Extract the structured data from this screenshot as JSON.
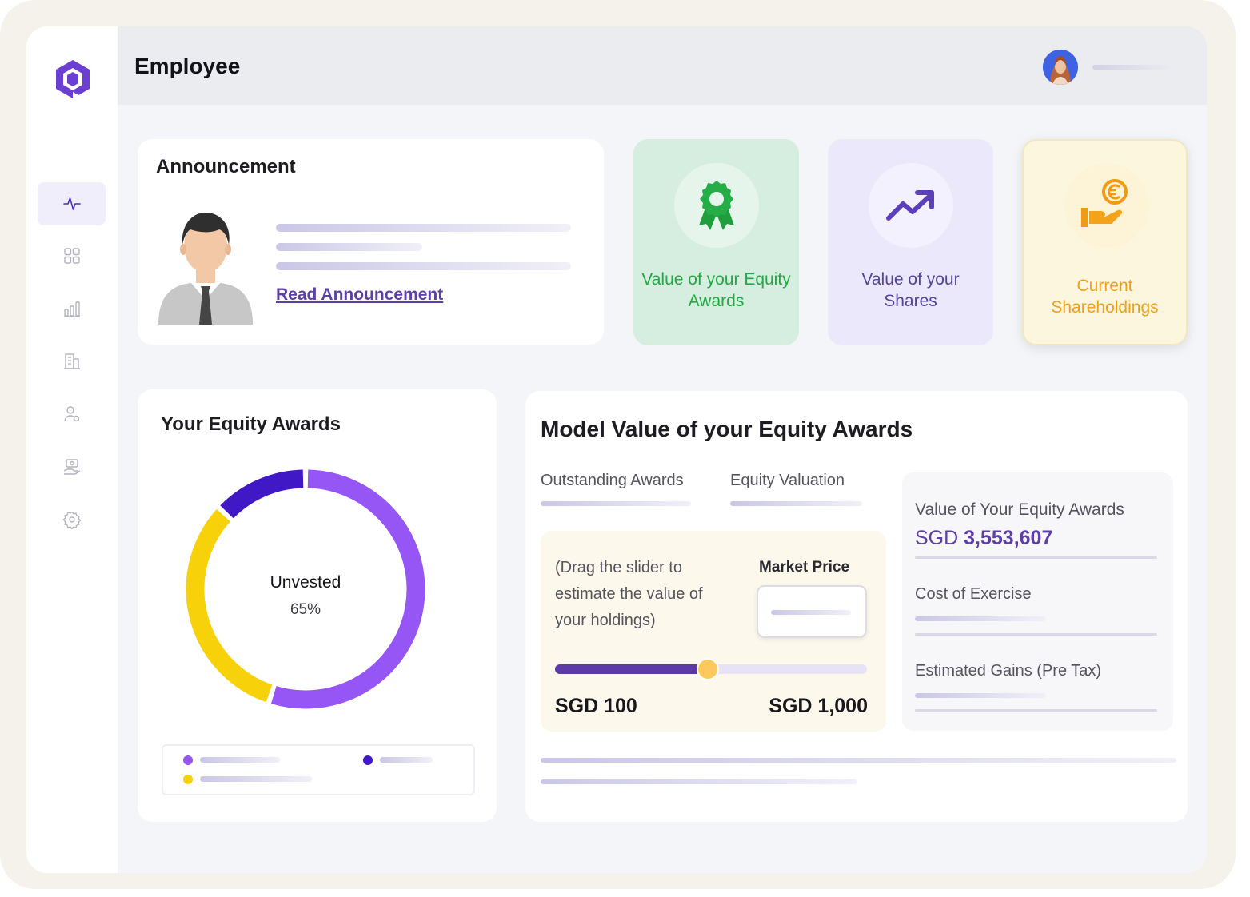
{
  "header": {
    "title": "Employee"
  },
  "sidebar": {
    "items": [
      {
        "icon": "activity-icon",
        "active": true
      },
      {
        "icon": "grid-icon",
        "active": false
      },
      {
        "icon": "bar-chart-icon",
        "active": false
      },
      {
        "icon": "building-icon",
        "active": false
      },
      {
        "icon": "user-settings-icon",
        "active": false
      },
      {
        "icon": "hand-money-icon",
        "active": false
      },
      {
        "icon": "gear-icon",
        "active": false
      }
    ]
  },
  "announcement": {
    "title": "Announcement",
    "link_label": "Read Announcement"
  },
  "tiles": [
    {
      "label": "Value of your Equity Awards",
      "color": "#24a843",
      "bg": "#d5eee0",
      "icon": "award-ribbon-icon"
    },
    {
      "label": "Value of your Shares",
      "color": "#55449c",
      "bg": "#ebe8fb",
      "icon": "trending-up-icon"
    },
    {
      "label": "Current Shareholdings",
      "color": "#eea11a",
      "bg": "#fdf6de",
      "icon": "hand-coin-icon"
    }
  ],
  "equity_awards": {
    "title": "Your Equity Awards",
    "center_label": "Unvested",
    "center_value": "65%",
    "segments": [
      {
        "value": 55,
        "color": "#9655f5"
      },
      {
        "value": 32,
        "color": "#f7d10a"
      },
      {
        "value": 13,
        "color": "#4118c6"
      }
    ]
  },
  "model": {
    "title": "Model Value of your Equity Awards",
    "tabs": [
      "Outstanding Awards",
      "Equity Valuation"
    ],
    "instruction": "(Drag the slider to estimate the value of your holdings)",
    "market_price_label": "Market Price",
    "slider": {
      "min_label": "SGD 100",
      "max_label": "SGD 1,000",
      "fraction": 0.49
    },
    "value_label": "Value of Your Equity Awards",
    "value_currency": "SGD",
    "value_amount": "3,553,607",
    "cost_label": "Cost of Exercise",
    "gains_label": "Estimated Gains (Pre Tax)"
  }
}
